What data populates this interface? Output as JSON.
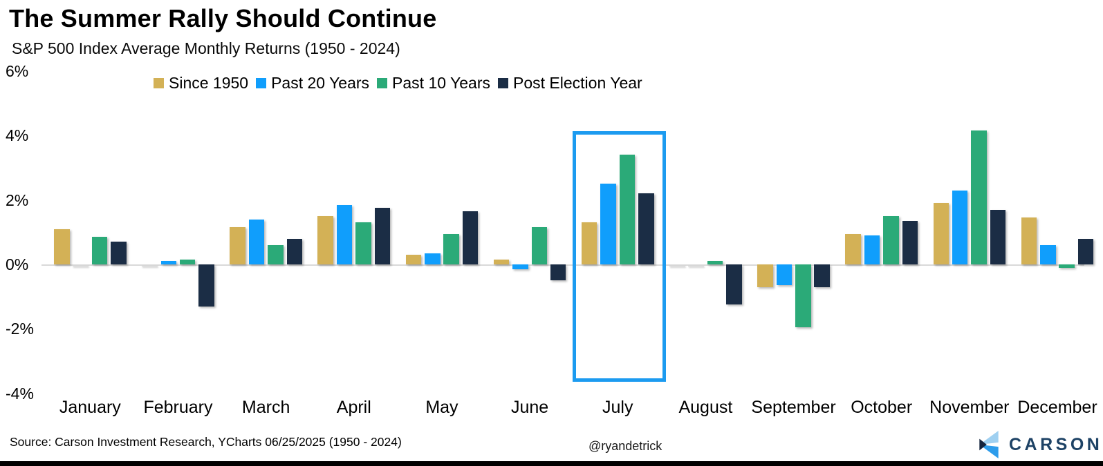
{
  "header": {
    "title": "The Summer Rally Should Continue",
    "subtitle": "S&P 500 Index Average Monthly Returns (1950 - 2024)"
  },
  "chart_data": {
    "type": "bar",
    "title": "The Summer Rally Should Continue",
    "subtitle": "S&P 500 Index Average Monthly Returns (1950 - 2024)",
    "categories": [
      "January",
      "February",
      "March",
      "April",
      "May",
      "June",
      "July",
      "August",
      "September",
      "October",
      "November",
      "December"
    ],
    "series": [
      {
        "name": "Since 1950",
        "color": "#d3b156",
        "values": [
          1.1,
          0,
          1.15,
          1.5,
          0.3,
          0.15,
          1.3,
          0,
          -0.7,
          0.95,
          1.9,
          1.45
        ]
      },
      {
        "name": "Past 20 Years",
        "color": "#109efc",
        "values": [
          0,
          0.1,
          1.4,
          1.85,
          0.35,
          -0.15,
          2.5,
          0,
          -0.65,
          0.9,
          2.3,
          0.6
        ]
      },
      {
        "name": "Past 10 Years",
        "color": "#2baa78",
        "values": [
          0.85,
          0.15,
          0.6,
          1.3,
          0.95,
          1.15,
          3.4,
          0.1,
          -1.95,
          1.5,
          4.15,
          -0.1
        ]
      },
      {
        "name": "Post Election Year",
        "color": "#1b2d45",
        "values": [
          0.7,
          -1.3,
          0.8,
          1.75,
          1.65,
          -0.5,
          2.2,
          -1.25,
          -0.7,
          1.35,
          1.7,
          0.8
        ]
      }
    ],
    "unit": "%",
    "ylim": [
      -4,
      6
    ],
    "yticks": {
      "values": [
        6,
        4,
        2,
        0,
        -2,
        -4
      ],
      "labels": [
        "6%",
        "4%",
        "2%",
        "0%",
        "-2%",
        "-4%"
      ]
    },
    "grid": false,
    "legend_position": "top",
    "axis_color": "#d9d9d9",
    "highlight": {
      "category": "July",
      "border_color": "#1c9bf0"
    }
  },
  "footer": {
    "source": "Source: Carson Investment Research, YCharts 06/25/2025 (1950 - 2024)",
    "handle": "@ryandetrick",
    "brand_name": "CARSON",
    "logo_icon": "carson-logo",
    "logo_colors": {
      "light": "#9fd0f1",
      "mid": "#2d9ceb",
      "dark": "#16253e",
      "text": "#1d4265"
    }
  }
}
